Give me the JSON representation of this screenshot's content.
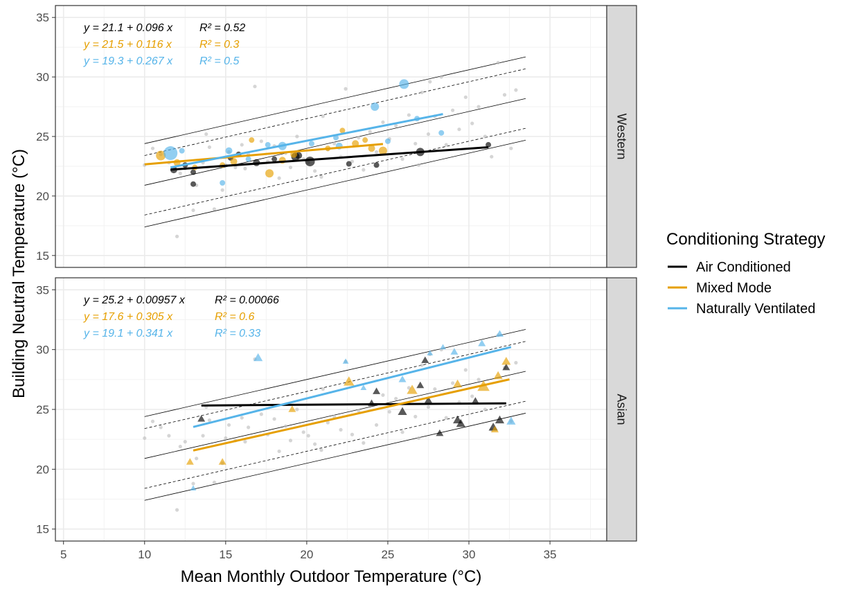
{
  "chart_data": {
    "type": "scatter",
    "xlabel": "Mean Monthly Outdoor Temperature (°C)",
    "ylabel": "Building Neutral Temperature (°C)",
    "xlim": [
      4.5,
      38.5
    ],
    "ylim": [
      14,
      36
    ],
    "x_ticks": [
      5,
      10,
      15,
      20,
      25,
      30,
      35
    ],
    "y_ticks": [
      15,
      20,
      25,
      30,
      35
    ],
    "grid": true,
    "legend": {
      "title": "Conditioning Strategy",
      "position": "right",
      "entries": [
        "Air Conditioned",
        "Mixed Mode",
        "Naturally Ventilated"
      ]
    },
    "colors": {
      "Air Conditioned": "#000000",
      "Mixed Mode": "#E69F00",
      "Naturally Ventilated": "#56B4E9",
      "background_points": "#BEBEBE",
      "strip": "#D9D9D9"
    },
    "reference_lines": {
      "slope": 0.31,
      "intercepts_solid": [
        21.3,
        17.8,
        14.3
      ],
      "intercepts_dashed": [
        20.3,
        15.3
      ],
      "x_range": [
        10,
        33.5
      ]
    },
    "background_points": [
      [
        10,
        22.6
      ],
      [
        10.5,
        24.0
      ],
      [
        11,
        23.5
      ],
      [
        11.5,
        22.8
      ],
      [
        12,
        16.6
      ],
      [
        12.2,
        21.9
      ],
      [
        12.5,
        22.3
      ],
      [
        13,
        18.8
      ],
      [
        13.2,
        20.9
      ],
      [
        13.6,
        22.8
      ],
      [
        14,
        24.1
      ],
      [
        14.3,
        18.9
      ],
      [
        14.8,
        20.5
      ],
      [
        15,
        22.6
      ],
      [
        15.2,
        23.7
      ],
      [
        15.6,
        22.4
      ],
      [
        16,
        24.3
      ],
      [
        16.4,
        23.5
      ],
      [
        16.8,
        29.2
      ],
      [
        17.2,
        24.6
      ],
      [
        17.6,
        22.9
      ],
      [
        18,
        24.2
      ],
      [
        18.3,
        21.5
      ],
      [
        18.7,
        23.6
      ],
      [
        19,
        22.4
      ],
      [
        19.4,
        25.0
      ],
      [
        19.8,
        23.1
      ],
      [
        20.1,
        22.8
      ],
      [
        20.5,
        22.1
      ],
      [
        20.9,
        21.6
      ],
      [
        21.3,
        23.9
      ],
      [
        21.7,
        24.4
      ],
      [
        22.1,
        23.3
      ],
      [
        22.4,
        29.0
      ],
      [
        22.8,
        22.9
      ],
      [
        23.2,
        24.9
      ],
      [
        23.5,
        22.2
      ],
      [
        23.9,
        25.4
      ],
      [
        24.3,
        23.7
      ],
      [
        24.7,
        26.2
      ],
      [
        25.1,
        24.8
      ],
      [
        25.5,
        25.9
      ],
      [
        25.9,
        23.1
      ],
      [
        26.3,
        26.8
      ],
      [
        26.7,
        24.4
      ],
      [
        27.1,
        28.7
      ],
      [
        27.5,
        25.2
      ],
      [
        27.9,
        26.7
      ],
      [
        28.3,
        30.0
      ],
      [
        28.6,
        24.3
      ],
      [
        29.0,
        27.2
      ],
      [
        29.4,
        25.6
      ],
      [
        29.8,
        28.3
      ],
      [
        30.2,
        26.1
      ],
      [
        30.6,
        27.5
      ],
      [
        31.0,
        25.0
      ],
      [
        31.4,
        23.3
      ],
      [
        31.8,
        31.2
      ],
      [
        32.2,
        28.5
      ],
      [
        32.6,
        24.0
      ],
      [
        32.9,
        28.9
      ],
      [
        27.6,
        29.6
      ],
      [
        21.0,
        26.7
      ],
      [
        16.2,
        22.3
      ],
      [
        13.8,
        25.2
      ],
      [
        26.9,
        22.6
      ]
    ],
    "panels": [
      {
        "strip": "Western",
        "equations": [
          {
            "series": "Air Conditioned",
            "y_eq": "y = 21.1 + 0.096 x",
            "r2": "R² = 0.52"
          },
          {
            "series": "Mixed Mode",
            "y_eq": "y = 21.5 + 0.116 x",
            "r2": "R² = 0.3"
          },
          {
            "series": "Naturally Ventilated",
            "y_eq": "y = 19.3 + 0.267 x",
            "r2": "R² = 0.5"
          }
        ],
        "fits": [
          {
            "series": "Air Conditioned",
            "intercept": 21.1,
            "slope": 0.096,
            "x": [
              11.6,
              31.2
            ]
          },
          {
            "series": "Mixed Mode",
            "intercept": 21.5,
            "slope": 0.116,
            "x": [
              10.0,
              24.7
            ]
          },
          {
            "series": "Naturally Ventilated",
            "intercept": 19.3,
            "slope": 0.267,
            "x": [
              11.6,
              28.4
            ]
          }
        ],
        "series": [
          {
            "name": "Air Conditioned",
            "points": [
              [
                11.8,
                22.2,
                5
              ],
              [
                12.5,
                22.6,
                4
              ],
              [
                13.0,
                22.0,
                4
              ],
              [
                13.0,
                21.0,
                4
              ],
              [
                15.3,
                23.2,
                4
              ],
              [
                15.8,
                23.5,
                4
              ],
              [
                16.9,
                22.8,
                5
              ],
              [
                18.0,
                23.1,
                4
              ],
              [
                19.3,
                23.3,
                6
              ],
              [
                19.5,
                23.4,
                5
              ],
              [
                20.2,
                22.9,
                7
              ],
              [
                22.6,
                22.7,
                4
              ],
              [
                24.3,
                22.6,
                4
              ],
              [
                27.0,
                23.7,
                6
              ],
              [
                31.2,
                24.3,
                4
              ]
            ]
          },
          {
            "name": "Mixed Mode",
            "points": [
              [
                11.0,
                23.4,
                7
              ],
              [
                12.0,
                22.8,
                5
              ],
              [
                13.1,
                22.4,
                4
              ],
              [
                14.8,
                22.6,
                4
              ],
              [
                15.5,
                22.9,
                5
              ],
              [
                16.6,
                24.7,
                4
              ],
              [
                17.7,
                21.9,
                6
              ],
              [
                18.5,
                23.0,
                5
              ],
              [
                19.2,
                23.5,
                5
              ],
              [
                21.3,
                24.0,
                4
              ],
              [
                22.2,
                25.5,
                4
              ],
              [
                23.0,
                24.4,
                5
              ],
              [
                23.6,
                24.7,
                4
              ],
              [
                24.0,
                24.0,
                5
              ],
              [
                24.7,
                23.8,
                6
              ]
            ]
          },
          {
            "name": "Naturally Ventilated",
            "points": [
              [
                11.6,
                23.6,
                10
              ],
              [
                12.3,
                23.8,
                4
              ],
              [
                14.8,
                21.1,
                4
              ],
              [
                15.2,
                23.8,
                5
              ],
              [
                16.4,
                23.1,
                4
              ],
              [
                17.6,
                24.3,
                4
              ],
              [
                18.5,
                24.2,
                6
              ],
              [
                20.3,
                24.4,
                4
              ],
              [
                22.0,
                24.2,
                5
              ],
              [
                24.2,
                27.5,
                6
              ],
              [
                25.0,
                24.6,
                4
              ],
              [
                26.0,
                29.4,
                7
              ],
              [
                26.8,
                26.5,
                4
              ],
              [
                28.3,
                25.3,
                4
              ],
              [
                21.8,
                24.9,
                4
              ]
            ]
          }
        ]
      },
      {
        "strip": "Asian",
        "equations": [
          {
            "series": "Air Conditioned",
            "y_eq": "y = 25.2 + 0.00957 x",
            "r2": "R² = 0.00066"
          },
          {
            "series": "Mixed Mode",
            "y_eq": "y = 17.6 + 0.305 x",
            "r2": "R² = 0.6"
          },
          {
            "series": "Naturally Ventilated",
            "y_eq": "y = 19.1 + 0.341 x",
            "r2": "R² = 0.33"
          }
        ],
        "fits": [
          {
            "series": "Air Conditioned",
            "intercept": 25.2,
            "slope": 0.00957,
            "x": [
              13.5,
              32.3
            ]
          },
          {
            "series": "Mixed Mode",
            "intercept": 17.6,
            "slope": 0.305,
            "x": [
              13.0,
              32.5
            ]
          },
          {
            "series": "Naturally Ventilated",
            "intercept": 19.1,
            "slope": 0.341,
            "x": [
              13.0,
              32.6
            ]
          }
        ],
        "series": [
          {
            "name": "Air Conditioned",
            "points": [
              [
                13.5,
                24.2,
                5
              ],
              [
                24.0,
                25.5,
                5
              ],
              [
                24.3,
                26.5,
                5
              ],
              [
                25.9,
                24.8,
                6
              ],
              [
                27.0,
                27.0,
                5
              ],
              [
                27.5,
                25.7,
                6
              ],
              [
                28.2,
                23.0,
                5
              ],
              [
                29.3,
                24.1,
                6
              ],
              [
                29.5,
                23.8,
                6
              ],
              [
                30.4,
                25.7,
                5
              ],
              [
                31.5,
                23.5,
                6
              ],
              [
                31.9,
                24.1,
                6
              ],
              [
                32.3,
                28.5,
                5
              ],
              [
                27.3,
                29.1,
                5
              ]
            ]
          },
          {
            "name": "Mixed Mode",
            "points": [
              [
                12.8,
                20.6,
                5
              ],
              [
                14.8,
                20.6,
                5
              ],
              [
                19.1,
                25.0,
                5
              ],
              [
                22.6,
                27.3,
                7
              ],
              [
                26.5,
                26.6,
                7
              ],
              [
                29.3,
                27.1,
                6
              ],
              [
                30.9,
                26.9,
                8
              ],
              [
                31.8,
                27.8,
                6
              ],
              [
                32.3,
                29.0,
                6
              ],
              [
                31.6,
                23.3,
                5
              ]
            ]
          },
          {
            "name": "Naturally Ventilated",
            "points": [
              [
                13.0,
                18.4,
                4
              ],
              [
                17.0,
                29.3,
                6
              ],
              [
                22.4,
                29.0,
                4
              ],
              [
                25.9,
                27.5,
                5
              ],
              [
                27.6,
                29.7,
                4
              ],
              [
                28.4,
                30.2,
                4
              ],
              [
                29.1,
                29.8,
                5
              ],
              [
                30.8,
                30.5,
                5
              ],
              [
                31.9,
                31.3,
                5
              ],
              [
                32.6,
                24.0,
                6
              ],
              [
                23.5,
                26.8,
                4
              ]
            ]
          }
        ]
      }
    ]
  }
}
